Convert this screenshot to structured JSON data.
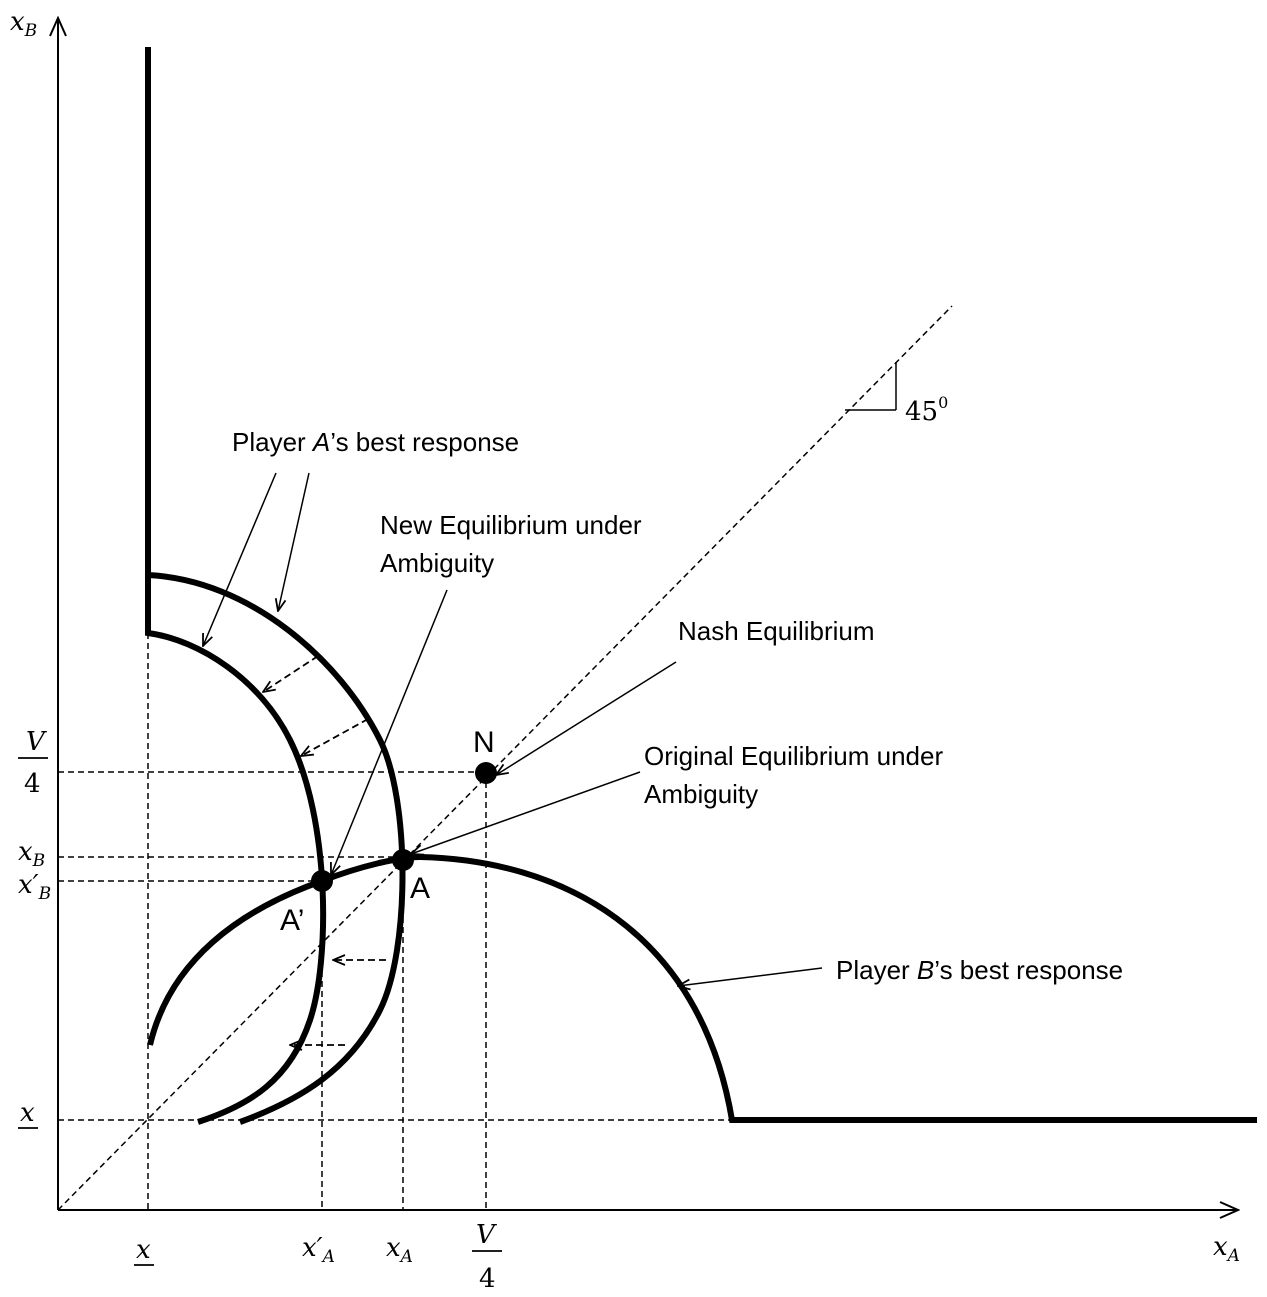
{
  "axes": {
    "x_label": "x_A",
    "y_label": "x_B"
  },
  "annotations": {
    "player_a": {
      "prefix": "Player ",
      "player": "A",
      "suffix": "’s best response"
    },
    "player_b": {
      "prefix": "Player ",
      "player": "B",
      "suffix": "’s best response"
    },
    "new_eq": [
      "New Equilibrium under",
      "Ambiguity"
    ],
    "nash": "Nash Equilibrium",
    "orig_eq": [
      "Original Equilibrium under",
      "Ambiguity"
    ],
    "angle": "45"
  },
  "points": {
    "N": "N",
    "A": "A",
    "A_prime": "A’"
  },
  "tick_labels_x": {
    "x_low": "x",
    "xA_prime": "x′",
    "xA": "x",
    "V": "V",
    "four": "4",
    "sub_A": "A"
  },
  "tick_labels_y": {
    "V": "V",
    "four": "4",
    "xB": "x",
    "xB_prime": "x′",
    "sub_B": "B",
    "x_low": "x"
  },
  "colors": {
    "ink": "#000000",
    "background": "#ffffff"
  }
}
